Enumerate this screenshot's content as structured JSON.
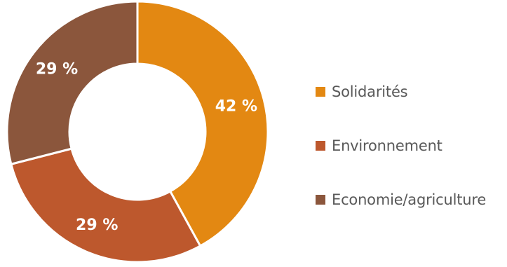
{
  "chart_data": {
    "type": "pie",
    "donut": true,
    "categories": [
      "Solidarités",
      "Environnement",
      "Economie/agriculture"
    ],
    "values": [
      42,
      29,
      29
    ],
    "data_labels": [
      "42 %",
      "29 %",
      "29 %"
    ],
    "colors": [
      "#e38812",
      "#bd582d",
      "#8b563c"
    ],
    "legend_position": "right"
  }
}
